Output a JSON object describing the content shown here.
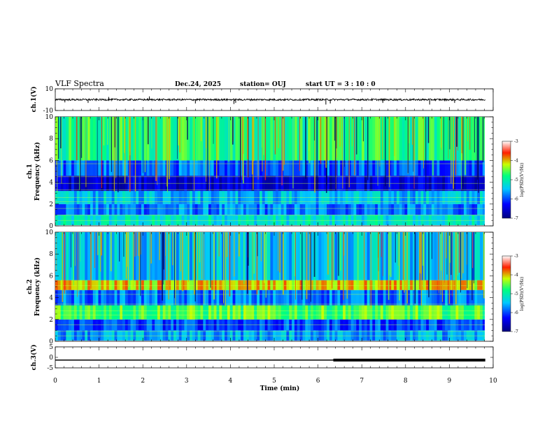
{
  "header": {
    "title": "VLF Spectra",
    "date": "Dec.24, 2025",
    "station": "station= OUJ",
    "start": "start  UT =   3  : 10 : 0"
  },
  "chart_data": [
    {
      "type": "line",
      "name": "ch1-waveform",
      "ylabel": "ch.1(V)",
      "ylim": [
        -10,
        10
      ],
      "y_ticks": [
        "10",
        "-10"
      ],
      "x_unit_range": [
        0,
        10
      ],
      "baseline": 0,
      "noise_amplitude": 0.8,
      "spikes": [
        {
          "x": 0.22,
          "y": -2.5
        },
        {
          "x": 0.75,
          "y": -3
        },
        {
          "x": 1.22,
          "y": 2.5
        },
        {
          "x": 2.15,
          "y": 3
        },
        {
          "x": 3.2,
          "y": -3.5
        },
        {
          "x": 4.08,
          "y": -4
        },
        {
          "x": 4.12,
          "y": -3
        },
        {
          "x": 6.18,
          "y": -4.5
        },
        {
          "x": 6.28,
          "y": -3.5
        },
        {
          "x": 7.48,
          "y": -3
        },
        {
          "x": 8.55,
          "y": -4.5
        },
        {
          "x": 9.12,
          "y": -3
        }
      ]
    },
    {
      "type": "heatmap",
      "name": "ch1-spectrogram",
      "ylabel": "ch.1\nFrequency (kHz)",
      "ylim": [
        0,
        10
      ],
      "y_ticks": [
        "0",
        "2",
        "4",
        "6",
        "8",
        "10"
      ],
      "colorbar": {
        "range": [
          -7,
          -3
        ],
        "ticks": [
          "-3",
          "-4",
          "-5",
          "-6",
          "-7"
        ],
        "label": "log(PSD)(V²/Hz)"
      },
      "bands": [
        {
          "y0": 0.0,
          "y1": 1.0,
          "level": 0.45
        },
        {
          "y0": 1.0,
          "y1": 2.0,
          "level": 0.3
        },
        {
          "y0": 2.0,
          "y1": 3.2,
          "level": 0.38
        },
        {
          "y0": 3.2,
          "y1": 4.6,
          "level": 0.12
        },
        {
          "y0": 4.6,
          "y1": 6.0,
          "level": 0.28
        },
        {
          "y0": 6.0,
          "y1": 10.0,
          "level": 0.55
        }
      ],
      "hlines": [
        0.5,
        1.0,
        1.6,
        2.2,
        2.6,
        3.3,
        3.9,
        4.5,
        5.7
      ]
    },
    {
      "type": "heatmap",
      "name": "ch2-spectrogram",
      "ylabel": "ch.2\nFrequency (kHz)",
      "ylim": [
        0,
        10
      ],
      "y_ticks": [
        "0",
        "2",
        "4",
        "6",
        "8",
        "10"
      ],
      "colorbar": {
        "range": [
          -7,
          -3
        ],
        "ticks": [
          "-3",
          "-4",
          "-5",
          "-6",
          "-7"
        ],
        "label": "log(PSD)(V²/Hz)"
      },
      "bands": [
        {
          "y0": 0.0,
          "y1": 1.0,
          "level": 0.35
        },
        {
          "y0": 1.0,
          "y1": 2.0,
          "level": 0.25
        },
        {
          "y0": 2.0,
          "y1": 3.3,
          "level": 0.6
        },
        {
          "y0": 3.3,
          "y1": 4.7,
          "level": 0.3
        },
        {
          "y0": 4.7,
          "y1": 5.6,
          "level": 0.72
        },
        {
          "y0": 5.6,
          "y1": 10.0,
          "level": 0.38
        }
      ],
      "hlines": [
        0.5,
        0.9,
        1.5,
        2.4,
        2.8,
        3.4,
        4.3,
        5.1
      ]
    },
    {
      "type": "line",
      "name": "ch3-level",
      "ylabel": "ch.3(V)",
      "ylim": [
        -5,
        5
      ],
      "y_ticks": [
        "5",
        "0",
        "-5"
      ],
      "segments": [
        {
          "x0": 0,
          "x1": 6.35,
          "y": -1.3,
          "width": 1.5
        },
        {
          "x0": 6.35,
          "x1": 9.82,
          "y": -1.3,
          "width": 4
        }
      ]
    }
  ],
  "xaxis": {
    "label": "Time (min)",
    "ticks": [
      "0",
      "1",
      "2",
      "3",
      "4",
      "5",
      "6",
      "7",
      "8",
      "9",
      "10"
    ],
    "range": [
      0,
      10
    ]
  }
}
